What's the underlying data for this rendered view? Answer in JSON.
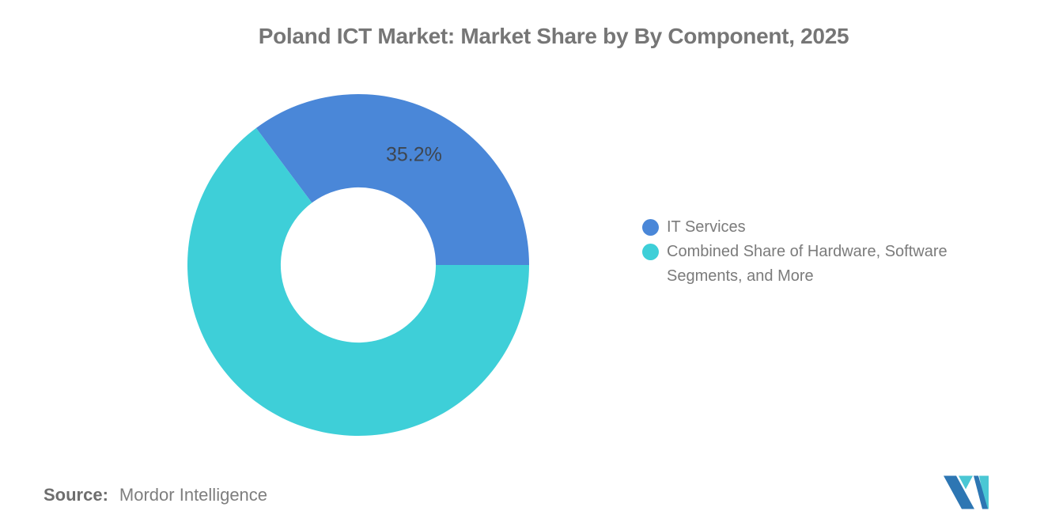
{
  "title": {
    "text": "Poland ICT Market: Market Share by By Component, 2025",
    "color": "#767676"
  },
  "chart_data": {
    "type": "pie",
    "subtype": "donut",
    "title": "Poland ICT Market: Market Share by By Component, 2025",
    "unit": "%",
    "inner_radius_ratio": 0.454,
    "rotation_note": "first slice ends at 3 o'clock (0 deg), slices drawn clockwise",
    "legend_position": "right",
    "data_label_color": "#3E4650",
    "segments": [
      {
        "label": "IT Services",
        "value": 35.2,
        "color": "#4A87D8",
        "data_label": "35.2%"
      },
      {
        "label": "Combined Share of Hardware, Software Segments, and More",
        "value": 64.8,
        "color": "#3ECFD8"
      }
    ]
  },
  "source": {
    "label": "Source:",
    "value": "Mordor Intelligence"
  },
  "logo": {
    "name": "Mordor Intelligence logo",
    "color_primary": "#2D76B3",
    "color_secondary": "#4AC7D4"
  }
}
